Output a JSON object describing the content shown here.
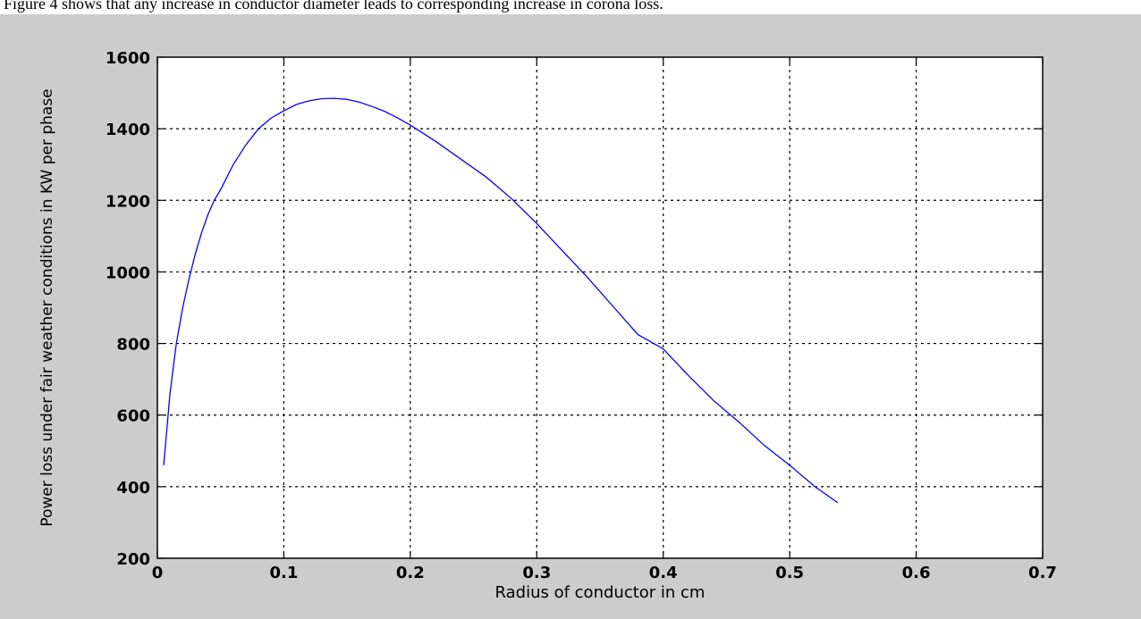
{
  "caption": "Figure 4 shows that any increase in conductor diameter leads to corresponding increase in corona loss.",
  "chart_data": {
    "type": "line",
    "title": "",
    "xlabel": "Radius of conductor in cm",
    "ylabel": "Power loss under fair weather conditions in KW per phase",
    "xlim": [
      0,
      0.7
    ],
    "ylim": [
      200,
      1600
    ],
    "xticks": [
      0,
      0.1,
      0.2,
      0.3,
      0.4,
      0.5,
      0.6,
      0.7
    ],
    "xtick_labels": [
      "0",
      "0.1",
      "0.2",
      "0.3",
      "0.4",
      "0.5",
      "0.6",
      "0.7"
    ],
    "yticks": [
      200,
      400,
      600,
      800,
      1000,
      1200,
      1400,
      1600
    ],
    "ytick_labels": [
      "200",
      "400",
      "600",
      "800",
      "1000",
      "1200",
      "1400",
      "1600"
    ],
    "grid": true,
    "grid_style": "dotted",
    "series": [
      {
        "color": "#0000ff",
        "x": [
          0.005,
          0.008,
          0.01,
          0.015,
          0.02,
          0.025,
          0.03,
          0.035,
          0.04,
          0.045,
          0.05,
          0.06,
          0.07,
          0.08,
          0.09,
          0.1,
          0.11,
          0.12,
          0.13,
          0.14,
          0.15,
          0.16,
          0.17,
          0.18,
          0.19,
          0.2,
          0.22,
          0.24,
          0.26,
          0.28,
          0.3,
          0.32,
          0.34,
          0.36,
          0.38,
          0.4,
          0.42,
          0.44,
          0.46,
          0.48,
          0.5,
          0.52,
          0.538
        ],
        "y": [
          460,
          580,
          660,
          800,
          900,
          980,
          1050,
          1110,
          1160,
          1200,
          1230,
          1300,
          1355,
          1400,
          1430,
          1450,
          1468,
          1478,
          1484,
          1485,
          1482,
          1474,
          1462,
          1448,
          1430,
          1410,
          1365,
          1315,
          1265,
          1205,
          1135,
          1060,
          985,
          905,
          825,
          785,
          710,
          640,
          580,
          515,
          460,
          400,
          355
        ]
      }
    ]
  }
}
